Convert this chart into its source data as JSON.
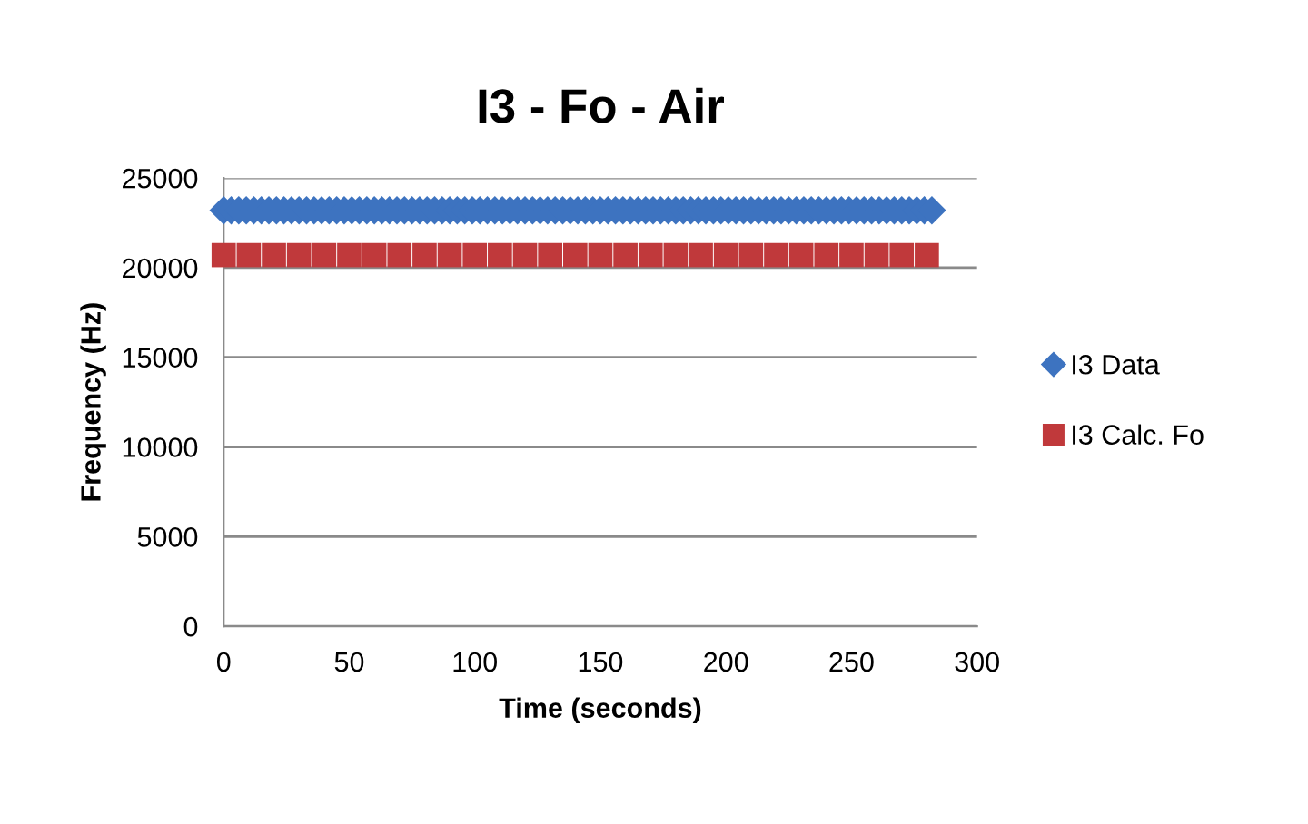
{
  "chart_data": {
    "type": "scatter",
    "title": "I3 - Fo - Air",
    "xlabel": "Time (seconds)",
    "ylabel": "Frequency (Hz)",
    "x": [
      0,
      3,
      6,
      9,
      12,
      15,
      18,
      21,
      24,
      27,
      30,
      33,
      36,
      39,
      42,
      45,
      48,
      51,
      54,
      57,
      60,
      63,
      66,
      69,
      72,
      75,
      78,
      81,
      84,
      87,
      90,
      93,
      96,
      99,
      102,
      105,
      108,
      111,
      114,
      117,
      120,
      123,
      126,
      129,
      132,
      135,
      138,
      141,
      144,
      147,
      150,
      153,
      156,
      159,
      162,
      165,
      168,
      171,
      174,
      177,
      180,
      183,
      186,
      189,
      192,
      195,
      198,
      201,
      204,
      207,
      210,
      213,
      216,
      219,
      222,
      225,
      228,
      231,
      234,
      237,
      240,
      243,
      246,
      249,
      252,
      255,
      258,
      261,
      264,
      267,
      270,
      273,
      276,
      279,
      282
    ],
    "series": [
      {
        "name": "I3 Data",
        "color": "#3d73c0",
        "marker": "diamond",
        "values": [
          23200,
          23200,
          23200,
          23200,
          23200,
          23200,
          23200,
          23200,
          23200,
          23200,
          23200,
          23200,
          23200,
          23200,
          23200,
          23200,
          23200,
          23200,
          23200,
          23200,
          23200,
          23200,
          23200,
          23200,
          23200,
          23200,
          23200,
          23200,
          23200,
          23200,
          23200,
          23200,
          23200,
          23200,
          23200,
          23200,
          23200,
          23200,
          23200,
          23200,
          23200,
          23200,
          23200,
          23200,
          23200,
          23200,
          23200,
          23200,
          23200,
          23200,
          23200,
          23200,
          23200,
          23200,
          23200,
          23200,
          23200,
          23200,
          23200,
          23200,
          23200,
          23200,
          23200,
          23200,
          23200,
          23200,
          23200,
          23200,
          23200,
          23200,
          23200,
          23200,
          23200,
          23200,
          23200,
          23200,
          23200,
          23200,
          23200,
          23200,
          23200,
          23200,
          23200,
          23200,
          23200,
          23200,
          23200,
          23200,
          23200,
          23200,
          23200,
          23200,
          23200,
          23200,
          23200
        ]
      },
      {
        "name": "I3 Calc. Fo",
        "color": "#c0393b",
        "marker": "square",
        "x": [
          0,
          10,
          20,
          30,
          40,
          50,
          60,
          70,
          80,
          90,
          100,
          110,
          120,
          130,
          140,
          150,
          160,
          170,
          180,
          190,
          200,
          210,
          220,
          230,
          240,
          250,
          260,
          270,
          280
        ],
        "values": [
          20700,
          20700,
          20700,
          20700,
          20700,
          20700,
          20700,
          20700,
          20700,
          20700,
          20700,
          20700,
          20700,
          20700,
          20700,
          20700,
          20700,
          20700,
          20700,
          20700,
          20700,
          20700,
          20700,
          20700,
          20700,
          20700,
          20700,
          20700,
          20700
        ]
      }
    ],
    "xlim": [
      0,
      300
    ],
    "xticks": [
      0,
      50,
      100,
      150,
      200,
      250,
      300
    ],
    "ylim": [
      0,
      25000
    ],
    "yticks": [
      0,
      5000,
      10000,
      15000,
      20000,
      25000
    ],
    "grid": "y",
    "legend": "right"
  }
}
